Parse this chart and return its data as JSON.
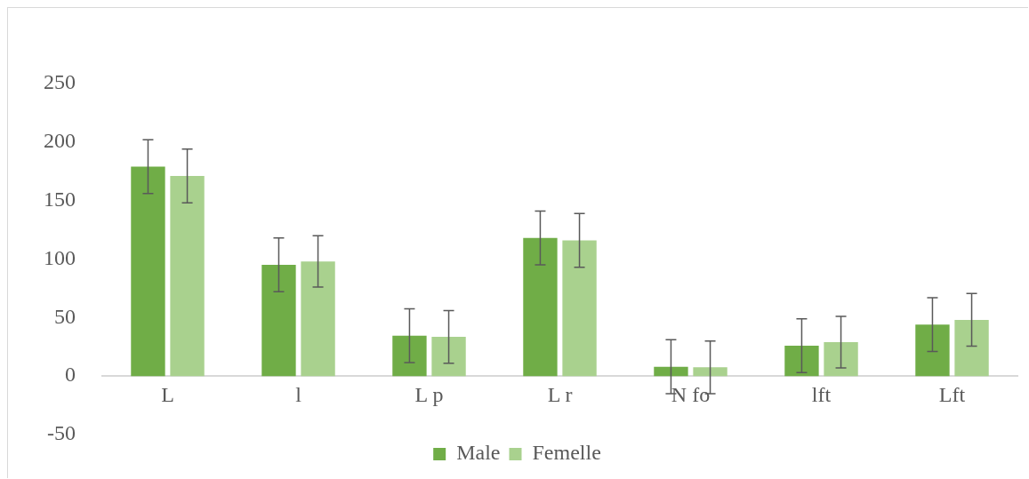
{
  "chart_data": {
    "type": "bar",
    "categories": [
      "L",
      "l",
      "L p",
      "L r",
      "N fo",
      "lft",
      "Lft"
    ],
    "series": [
      {
        "name": "Male",
        "color": "#70ad47",
        "values": [
          179,
          95,
          34.5,
          118,
          8,
          26,
          44
        ],
        "errors": [
          23,
          23,
          23,
          23,
          23,
          23,
          23
        ]
      },
      {
        "name": "Femelle",
        "color": "#a9d18e",
        "values": [
          171,
          98,
          33.5,
          116,
          7.5,
          29,
          48
        ],
        "errors": [
          23,
          22,
          22.5,
          23,
          22.5,
          22,
          22.5
        ]
      }
    ],
    "ylim": [
      -50,
      250
    ],
    "yticks": [
      -50,
      0,
      50,
      100,
      150,
      200,
      250
    ],
    "grid": false,
    "legend": "bottom"
  }
}
